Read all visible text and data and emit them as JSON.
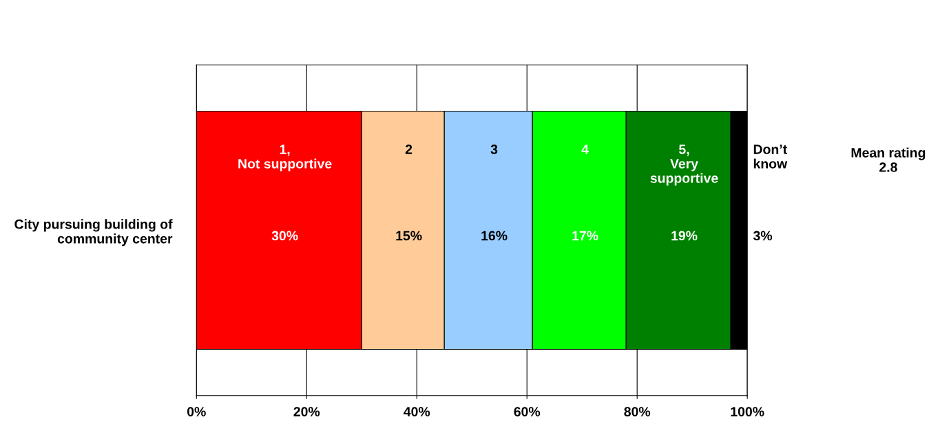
{
  "chart_data": {
    "type": "bar",
    "orientation": "horizontal",
    "stacked": true,
    "categories": [
      "City pursuing building of\ncommunity center"
    ],
    "series": [
      {
        "name": "1,\nNot supportive",
        "color": "#ff0000",
        "values": [
          30
        ],
        "value_labels": [
          "30%"
        ]
      },
      {
        "name": "2",
        "color": "#ffcc99",
        "values": [
          15
        ],
        "value_labels": [
          "15%"
        ]
      },
      {
        "name": "3",
        "color": "#99ccff",
        "values": [
          16
        ],
        "value_labels": [
          "16%"
        ]
      },
      {
        "name": "4",
        "color": "#00ff00",
        "values": [
          17
        ],
        "value_labels": [
          "17%"
        ]
      },
      {
        "name": "5,\nVery\nsupportive",
        "color": "#008000",
        "values": [
          19
        ],
        "value_labels": [
          "19%"
        ]
      },
      {
        "name": "Don’t\nknow",
        "color": "#000000",
        "values": [
          3
        ],
        "value_labels": [
          "3%"
        ]
      }
    ],
    "xlim": [
      0,
      100
    ],
    "xticks": [
      {
        "value": 0,
        "label": "0%"
      },
      {
        "value": 20,
        "label": "20%"
      },
      {
        "value": 40,
        "label": "40%"
      },
      {
        "value": 60,
        "label": "60%"
      },
      {
        "value": 80,
        "label": "80%"
      },
      {
        "value": 100,
        "label": "100%"
      }
    ],
    "grid": "x",
    "legend": false,
    "annotations": [
      "Mean rating\n2.8"
    ]
  }
}
